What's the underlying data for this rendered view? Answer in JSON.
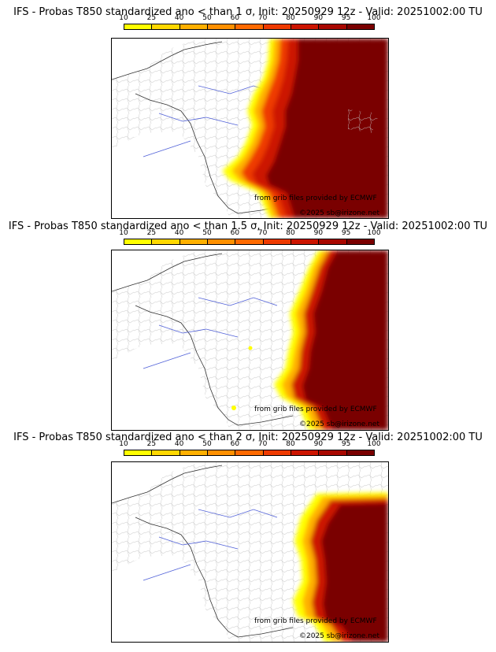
{
  "scale": {
    "labels": [
      "10",
      "25",
      "40",
      "50",
      "60",
      "70",
      "80",
      "90",
      "95",
      "100"
    ],
    "colors": [
      "#ffff00",
      "#ffd800",
      "#ffb000",
      "#ff9000",
      "#ff6a00",
      "#ee3a00",
      "#cc1500",
      "#a80800",
      "#7a0000"
    ]
  },
  "panels": [
    {
      "title": "IFS - Probas T850  standardized ano < than 1 σ, Init: 20250929 12z - Valid: 20251002:00 TU",
      "credit1": "from grib files provided by ECMWF",
      "credit2": "©2025 sb@irizone.net"
    },
    {
      "title": "IFS - Probas T850  standardized ano < than 1.5 σ, Init: 20250929 12z - Valid: 20251002:00 TU",
      "credit1": "from grib files provided by ECMWF",
      "credit2": "©2025 sb@irizone.net"
    },
    {
      "title": "IFS - Probas T850  standardized ano < than 2 σ, Init: 20250929 12z - Valid: 20251002:00 TU",
      "credit1": "from grib files provided by ECMWF",
      "credit2": "©2025 sb@irizone.net"
    }
  ]
}
